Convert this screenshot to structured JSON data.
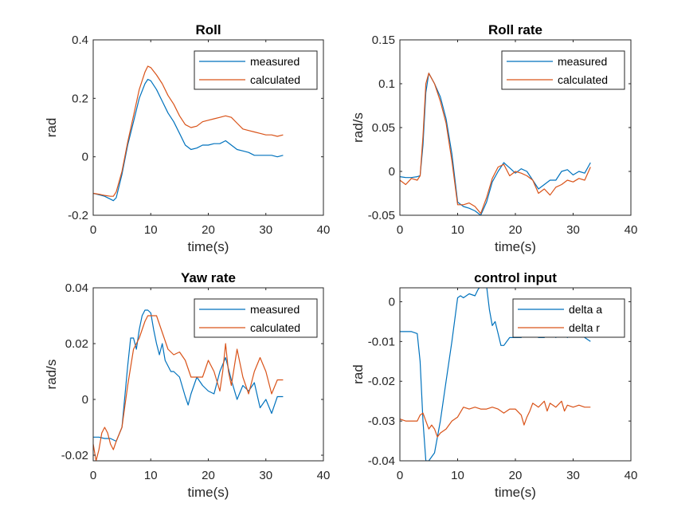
{
  "colors": {
    "measured": "#0072BD",
    "calculated": "#D95319",
    "axis": "#262626"
  },
  "chart_data": [
    {
      "type": "line",
      "title": "Roll",
      "xlabel": "time(s)",
      "ylabel": "rad",
      "xlim": [
        0,
        40
      ],
      "ylim": [
        -0.2,
        0.4
      ],
      "xticks": [
        0,
        10,
        20,
        30,
        40
      ],
      "yticks": [
        -0.2,
        0,
        0.2,
        0.4
      ],
      "ytick_labels": [
        "-0.2",
        "0",
        "0.2",
        "0.4"
      ],
      "legend": "top-right",
      "series": [
        {
          "name": "measured",
          "x": [
            0,
            1,
            2,
            3,
            3.5,
            4,
            5,
            6,
            7,
            8,
            9,
            9.5,
            10,
            11,
            12,
            13,
            14,
            15,
            16,
            17,
            18,
            19,
            20,
            21,
            22,
            23,
            24,
            25,
            26,
            27,
            28,
            29,
            30,
            31,
            32,
            33
          ],
          "y": [
            -0.125,
            -0.13,
            -0.135,
            -0.145,
            -0.15,
            -0.14,
            -0.06,
            0.04,
            0.12,
            0.2,
            0.25,
            0.265,
            0.26,
            0.23,
            0.19,
            0.15,
            0.12,
            0.08,
            0.04,
            0.025,
            0.03,
            0.04,
            0.04,
            0.045,
            0.045,
            0.055,
            0.04,
            0.025,
            0.02,
            0.015,
            0.005,
            0.005,
            0.005,
            0.005,
            0.0,
            0.005
          ]
        },
        {
          "name": "calculated",
          "x": [
            0,
            1,
            2,
            3,
            3.5,
            4,
            5,
            6,
            7,
            8,
            9,
            9.5,
            10,
            11,
            12,
            13,
            14,
            15,
            16,
            17,
            18,
            19,
            20,
            21,
            22,
            23,
            24,
            25,
            26,
            27,
            28,
            29,
            30,
            31,
            32,
            33
          ],
          "y": [
            -0.125,
            -0.128,
            -0.132,
            -0.135,
            -0.135,
            -0.12,
            -0.05,
            0.05,
            0.14,
            0.23,
            0.29,
            0.31,
            0.305,
            0.28,
            0.25,
            0.21,
            0.18,
            0.14,
            0.11,
            0.1,
            0.105,
            0.12,
            0.125,
            0.13,
            0.135,
            0.14,
            0.135,
            0.115,
            0.095,
            0.09,
            0.085,
            0.08,
            0.075,
            0.075,
            0.07,
            0.075
          ]
        }
      ]
    },
    {
      "type": "line",
      "title": "Roll rate",
      "xlabel": "time(s)",
      "ylabel": "rad/s",
      "xlim": [
        0,
        40
      ],
      "ylim": [
        -0.05,
        0.15
      ],
      "xticks": [
        0,
        10,
        20,
        30,
        40
      ],
      "yticks": [
        -0.05,
        0,
        0.05,
        0.1,
        0.15
      ],
      "ytick_labels": [
        "-0.05",
        "0",
        "0.05",
        "0.1",
        "0.15"
      ],
      "legend": "top-right",
      "series": [
        {
          "name": "measured",
          "x": [
            0,
            1,
            2,
            3,
            3.5,
            4,
            4.5,
            5,
            6,
            7,
            8,
            9,
            10,
            11,
            12,
            13,
            14,
            15,
            16,
            17,
            18,
            19,
            20,
            21,
            22,
            23,
            24,
            25,
            26,
            27,
            28,
            29,
            30,
            31,
            32,
            33
          ],
          "y": [
            -0.006,
            -0.007,
            -0.007,
            -0.006,
            -0.005,
            0.03,
            0.09,
            0.112,
            0.1,
            0.085,
            0.06,
            0.02,
            -0.035,
            -0.04,
            -0.042,
            -0.045,
            -0.05,
            -0.035,
            -0.012,
            0.0,
            0.01,
            0.004,
            -0.002,
            0.003,
            0.0,
            -0.01,
            -0.02,
            -0.015,
            -0.01,
            -0.01,
            0.0,
            0.002,
            -0.004,
            0.0,
            -0.002,
            0.01
          ]
        },
        {
          "name": "calculated",
          "x": [
            0,
            1,
            2,
            3,
            3.5,
            4,
            4.5,
            5,
            6,
            7,
            8,
            9,
            10,
            11,
            12,
            13,
            14,
            15,
            16,
            17,
            18,
            19,
            20,
            21,
            22,
            23,
            24,
            25,
            26,
            27,
            28,
            29,
            30,
            31,
            32,
            33
          ],
          "y": [
            -0.01,
            -0.015,
            -0.008,
            -0.01,
            -0.005,
            0.04,
            0.1,
            0.112,
            0.1,
            0.08,
            0.055,
            0.012,
            -0.038,
            -0.038,
            -0.036,
            -0.04,
            -0.048,
            -0.03,
            -0.008,
            0.005,
            0.008,
            -0.005,
            0.0,
            -0.002,
            -0.005,
            -0.01,
            -0.025,
            -0.02,
            -0.027,
            -0.018,
            -0.015,
            -0.01,
            -0.012,
            -0.008,
            -0.01,
            0.005
          ]
        }
      ]
    },
    {
      "type": "line",
      "title": "Yaw rate",
      "xlabel": "time(s)",
      "ylabel": "rad/s",
      "xlim": [
        0,
        40
      ],
      "ylim": [
        -0.022,
        0.04
      ],
      "xticks": [
        0,
        10,
        20,
        30,
        40
      ],
      "yticks": [
        -0.02,
        0,
        0.02,
        0.04
      ],
      "ytick_labels": [
        "-0.02",
        "0",
        "0.02",
        "0.04"
      ],
      "legend": "top-right",
      "series": [
        {
          "name": "measured",
          "x": [
            0,
            1,
            2,
            3,
            4,
            5,
            6,
            6.5,
            7,
            7.5,
            8,
            8.5,
            9,
            9.5,
            10,
            10.5,
            11,
            11.5,
            12,
            12.5,
            13,
            13.5,
            14,
            15,
            16,
            16.5,
            17,
            18,
            19,
            20,
            21,
            22,
            23,
            24,
            25,
            26,
            27,
            28,
            29,
            30,
            31,
            32,
            33
          ],
          "y": [
            -0.0135,
            -0.0135,
            -0.014,
            -0.014,
            -0.015,
            -0.01,
            0.012,
            0.022,
            0.022,
            0.018,
            0.025,
            0.03,
            0.032,
            0.032,
            0.031,
            0.025,
            0.02,
            0.016,
            0.02,
            0.014,
            0.012,
            0.01,
            0.01,
            0.008,
            0.001,
            -0.002,
            0.002,
            0.008,
            0.005,
            0.003,
            0.002,
            0.01,
            0.015,
            0.007,
            0.0,
            0.005,
            0.003,
            0.006,
            -0.003,
            0.0,
            -0.005,
            0.001,
            0.001
          ]
        },
        {
          "name": "calculated",
          "x": [
            0,
            0.5,
            1,
            1.5,
            2,
            2.5,
            3,
            3.5,
            4,
            5,
            6,
            7,
            8,
            9,
            9.5,
            10,
            11,
            12,
            13,
            14,
            15,
            16,
            17,
            18,
            19,
            20,
            21,
            22,
            22.5,
            23,
            23.5,
            24,
            25,
            26,
            27,
            28,
            29,
            30,
            31,
            32,
            33
          ],
          "y": [
            -0.016,
            -0.022,
            -0.018,
            -0.012,
            -0.01,
            -0.012,
            -0.016,
            -0.018,
            -0.015,
            -0.01,
            0.005,
            0.018,
            0.022,
            0.028,
            0.03,
            0.03,
            0.03,
            0.024,
            0.018,
            0.016,
            0.017,
            0.014,
            0.008,
            0.008,
            0.008,
            0.014,
            0.01,
            0.003,
            0.01,
            0.02,
            0.01,
            0.005,
            0.018,
            0.008,
            0.002,
            0.01,
            0.015,
            0.01,
            0.002,
            0.007,
            0.007
          ]
        }
      ]
    },
    {
      "type": "line",
      "title": "control input",
      "xlabel": "time(s)",
      "ylabel": "rad",
      "xlim": [
        0,
        40
      ],
      "ylim": [
        -0.04,
        0.0035
      ],
      "xticks": [
        0,
        10,
        20,
        30,
        40
      ],
      "yticks": [
        -0.04,
        -0.03,
        -0.02,
        -0.01,
        0
      ],
      "ytick_labels": [
        "-0.04",
        "-0.03",
        "-0.02",
        "-0.01",
        "0"
      ],
      "legend": "top-right",
      "series": [
        {
          "name": "delta a",
          "x": [
            0,
            1,
            2,
            3,
            3.5,
            4,
            4.5,
            5,
            6,
            7,
            8,
            9,
            10,
            10.5,
            11,
            12,
            13,
            13.5,
            14,
            15,
            15.5,
            16,
            16.5,
            17,
            17.5,
            18,
            19,
            20,
            21,
            22,
            23,
            24,
            25,
            26,
            27,
            28,
            29,
            30,
            31,
            32,
            33
          ],
          "y": [
            -0.0075,
            -0.0075,
            -0.0075,
            -0.008,
            -0.015,
            -0.03,
            -0.04,
            -0.04,
            -0.038,
            -0.03,
            -0.02,
            -0.01,
            0.001,
            0.0015,
            0.001,
            0.002,
            0.0015,
            0.003,
            0.004,
            0.004,
            -0.002,
            -0.006,
            -0.005,
            -0.008,
            -0.011,
            -0.011,
            -0.009,
            -0.009,
            -0.009,
            -0.008,
            -0.008,
            -0.009,
            -0.009,
            -0.008,
            -0.009,
            -0.008,
            -0.009,
            -0.008,
            -0.007,
            -0.009,
            -0.01
          ]
        },
        {
          "name": "delta r",
          "x": [
            0,
            1,
            2,
            3,
            3.5,
            4,
            4.5,
            5,
            5.5,
            6,
            6.5,
            7,
            8,
            9,
            10,
            11,
            12,
            13,
            14,
            15,
            16,
            17,
            18,
            19,
            20,
            21,
            21.5,
            22,
            22.5,
            23,
            24,
            25,
            25.5,
            26,
            27,
            28,
            28.5,
            29,
            30,
            31,
            32,
            33
          ],
          "y": [
            -0.0295,
            -0.03,
            -0.03,
            -0.03,
            -0.0285,
            -0.028,
            -0.03,
            -0.032,
            -0.031,
            -0.032,
            -0.034,
            -0.033,
            -0.032,
            -0.03,
            -0.029,
            -0.0265,
            -0.027,
            -0.0265,
            -0.027,
            -0.027,
            -0.0265,
            -0.027,
            -0.028,
            -0.027,
            -0.027,
            -0.0285,
            -0.031,
            -0.029,
            -0.0275,
            -0.0255,
            -0.0265,
            -0.025,
            -0.0275,
            -0.0255,
            -0.0265,
            -0.025,
            -0.0275,
            -0.026,
            -0.0265,
            -0.026,
            -0.0265,
            -0.0265
          ]
        }
      ]
    }
  ]
}
